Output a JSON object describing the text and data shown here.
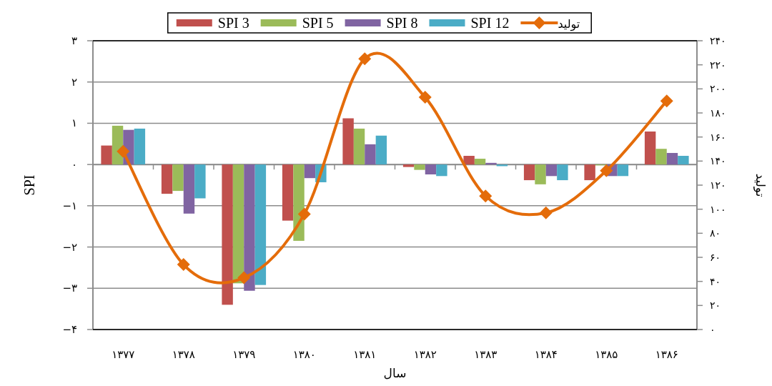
{
  "chart_data": {
    "type": "bar",
    "categories": [
      "۱۳۷۷",
      "۱۳۷۸",
      "۱۳۷۹",
      "۱۳۸۰",
      "۱۳۸۱",
      "۱۳۸۲",
      "۱۳۸۳",
      "۱۳۸۴",
      "۱۳۸۵",
      "۱۳۸۶"
    ],
    "xlabel": "سال",
    "ylabel": "SPI",
    "y2label": "تولید",
    "ylim": [
      -4,
      3
    ],
    "yticks": [
      {
        "value": -4,
        "label": "−۴"
      },
      {
        "value": -3,
        "label": "−۳"
      },
      {
        "value": -2,
        "label": "−۲"
      },
      {
        "value": -1,
        "label": "−۱"
      },
      {
        "value": 0,
        "label": "۰"
      },
      {
        "value": 1,
        "label": "۱"
      },
      {
        "value": 2,
        "label": "۲"
      },
      {
        "value": 3,
        "label": "۳"
      }
    ],
    "y2lim": [
      0,
      240
    ],
    "y2ticks": [
      {
        "value": 0,
        "label": "۰"
      },
      {
        "value": 20,
        "label": "۲۰"
      },
      {
        "value": 40,
        "label": "۴۰"
      },
      {
        "value": 60,
        "label": "۶۰"
      },
      {
        "value": 80,
        "label": "۸۰"
      },
      {
        "value": 100,
        "label": "۱۰۰"
      },
      {
        "value": 120,
        "label": "۱۲۰"
      },
      {
        "value": 140,
        "label": "۱۴۰"
      },
      {
        "value": 160,
        "label": "۱۶۰"
      },
      {
        "value": 180,
        "label": "۱۸۰"
      },
      {
        "value": 200,
        "label": "۲۰۰"
      },
      {
        "value": 220,
        "label": "۲۲۰"
      },
      {
        "value": 240,
        "label": "۲۴۰"
      }
    ],
    "grid": "y",
    "legend": "top",
    "series": [
      {
        "name": "SPI 3",
        "color": "#c0504d",
        "values": [
          0.46,
          -0.71,
          -3.4,
          -1.36,
          1.12,
          -0.06,
          0.21,
          -0.38,
          -0.38,
          0.8
        ]
      },
      {
        "name": "SPI 5",
        "color": "#9bbb59",
        "values": [
          0.94,
          -0.64,
          -2.88,
          -1.85,
          0.87,
          -0.13,
          0.14,
          -0.48,
          -0.02,
          0.38
        ]
      },
      {
        "name": "SPI 8",
        "color": "#8064a2",
        "values": [
          0.84,
          -1.19,
          -3.06,
          -0.33,
          0.49,
          -0.24,
          0.04,
          -0.28,
          -0.28,
          0.28
        ]
      },
      {
        "name": "SPI 12",
        "color": "#4bacc6",
        "values": [
          0.87,
          -0.82,
          -2.92,
          -0.43,
          0.7,
          -0.28,
          -0.04,
          -0.38,
          -0.28,
          0.21
        ]
      },
      {
        "name": "تولید",
        "type": "line",
        "axis": "y2",
        "marker": "diamond",
        "line_style": "solid",
        "color": "#e46c0a",
        "values": [
          148,
          54,
          43,
          96,
          225,
          193,
          111,
          97,
          132,
          190
        ]
      }
    ]
  }
}
